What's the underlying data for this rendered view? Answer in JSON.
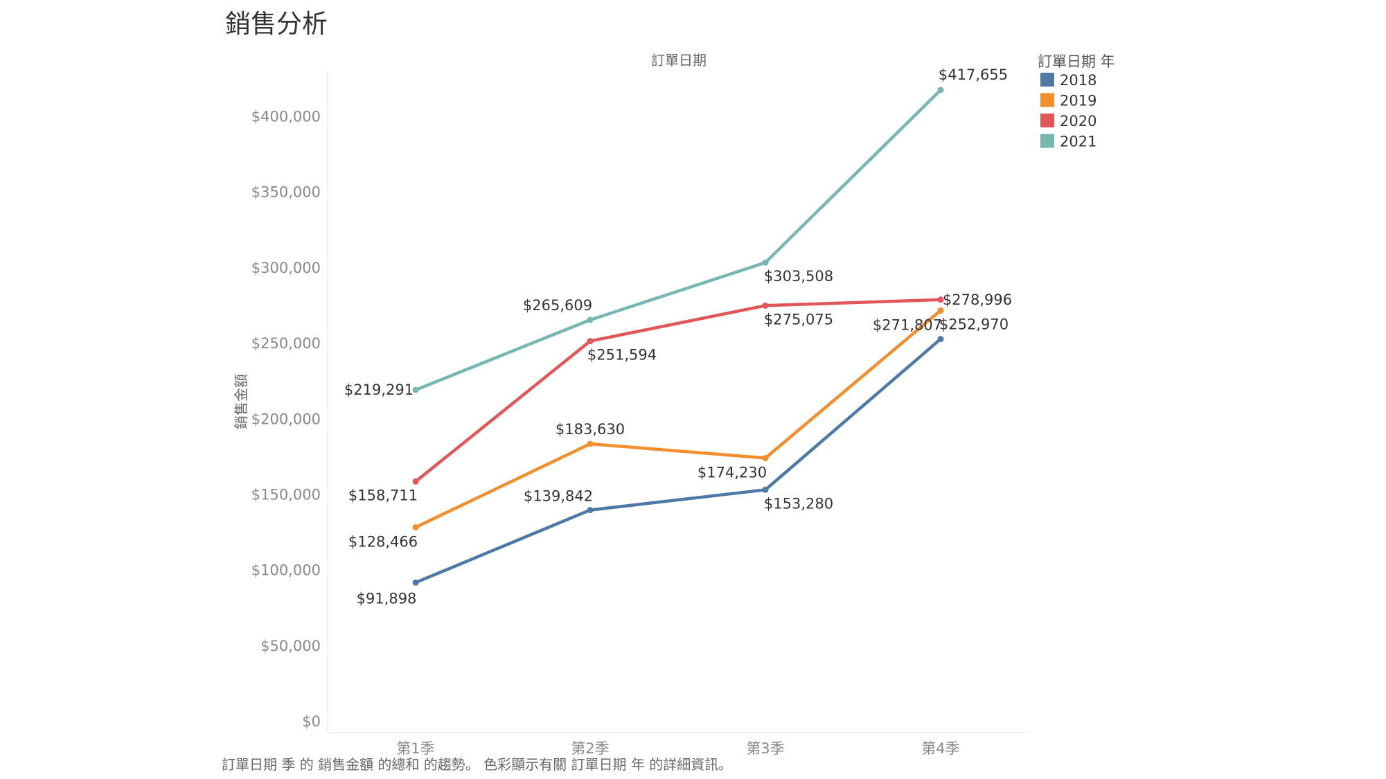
{
  "title": "銷售分析",
  "caption": "訂單日期 季 的 銷售金額 的總和 的趨勢。 色彩顯示有關 訂單日期 年 的詳細資訊。",
  "chart_data": {
    "type": "line",
    "title": "銷售分析",
    "xlabel": "訂單日期",
    "ylabel": "銷售金額",
    "categories": [
      "第1季",
      "第2季",
      "第3季",
      "第4季"
    ],
    "ylim": [
      0,
      430000
    ],
    "yticks": [
      0,
      50000,
      100000,
      150000,
      200000,
      250000,
      300000,
      350000,
      400000
    ],
    "ytick_labels": [
      "$0",
      "$50,000",
      "$100,000",
      "$150,000",
      "$200,000",
      "$250,000",
      "$300,000",
      "$350,000",
      "$400,000"
    ],
    "grid": false,
    "legend_title": "訂單日期 年",
    "legend_position": "top-right",
    "series": [
      {
        "name": "2018",
        "color": "#4e79a7",
        "values": [
          91898,
          139842,
          153280,
          252970
        ],
        "labels": [
          "$91,898",
          "$139,842",
          "$153,280",
          "$252,970"
        ]
      },
      {
        "name": "2019",
        "color": "#f28e2b",
        "values": [
          128466,
          183630,
          174230,
          271807
        ],
        "labels": [
          "$128,466",
          "$183,630",
          "$174,230",
          "$271,807"
        ]
      },
      {
        "name": "2020",
        "color": "#e15759",
        "values": [
          158711,
          251594,
          275075,
          278996
        ],
        "labels": [
          "$158,711",
          "$251,594",
          "$275,075",
          "$278,996"
        ]
      },
      {
        "name": "2021",
        "color": "#76b7b2",
        "values": [
          219291,
          265609,
          303508,
          417655
        ],
        "labels": [
          "$219,291",
          "$265,609",
          "$303,508",
          "$417,655"
        ]
      }
    ]
  }
}
